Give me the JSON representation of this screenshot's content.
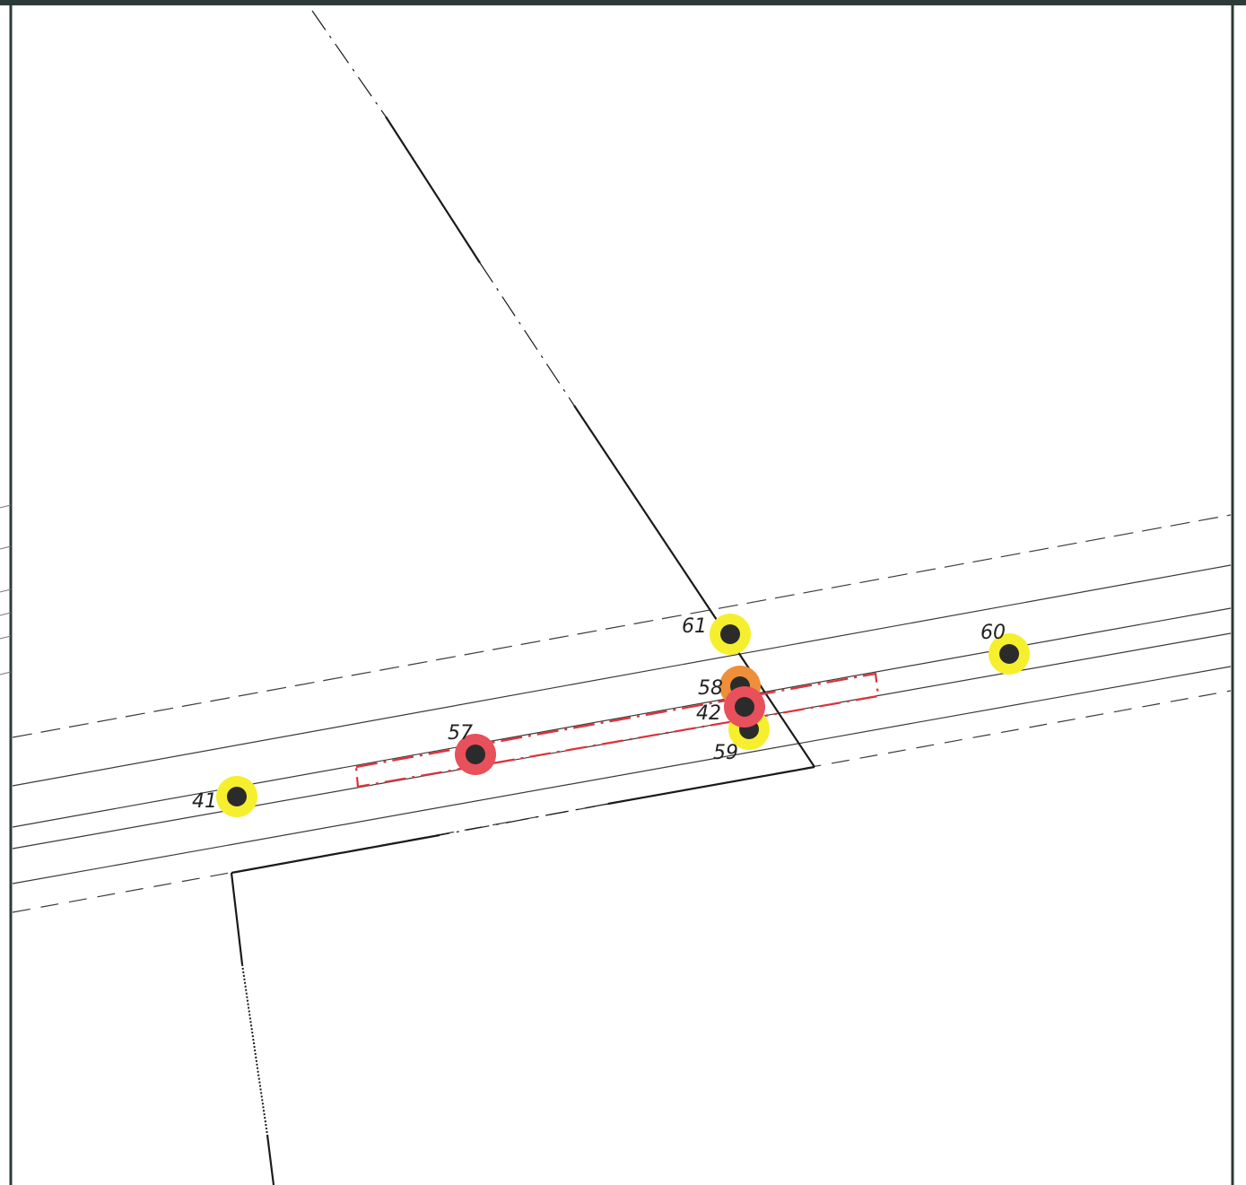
{
  "map": {
    "colors": {
      "background": "#ffffff",
      "frame": "#2c3a3a",
      "parcel_line": "#1a1a1a",
      "road_line": "#3a3a3a",
      "marker_core": "#2b2b2b",
      "ring_yellow": "#f5ef2e",
      "ring_red": "#e8505b",
      "ring_orange": "#ef8f3a",
      "excavation_outline": "#e0303a"
    },
    "points": [
      {
        "id": "41",
        "label": "41",
        "ring": "yellow",
        "icon": "survey-point-icon"
      },
      {
        "id": "57",
        "label": "57",
        "ring": "red",
        "icon": "survey-point-icon"
      },
      {
        "id": "58",
        "label": "58",
        "ring": "orange",
        "icon": "survey-point-icon"
      },
      {
        "id": "42",
        "label": "42",
        "ring": "red",
        "icon": "survey-point-icon"
      },
      {
        "id": "59",
        "label": "59",
        "ring": "yellow",
        "icon": "survey-point-icon"
      },
      {
        "id": "61",
        "label": "61",
        "ring": "yellow",
        "icon": "survey-point-icon"
      },
      {
        "id": "60",
        "label": "60",
        "ring": "yellow",
        "icon": "survey-point-icon"
      }
    ]
  }
}
